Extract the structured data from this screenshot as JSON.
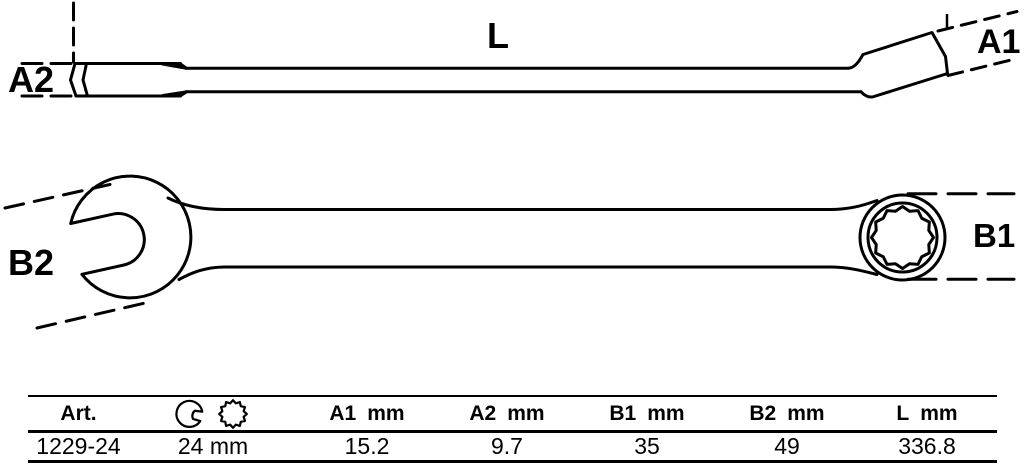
{
  "drawing": {
    "labels": {
      "length": "L",
      "a1": "A1",
      "a2": "A2",
      "b1": "B1",
      "b2": "B2"
    }
  },
  "table": {
    "columns": [
      {
        "label": "Art.",
        "unit": ""
      },
      {
        "label": "",
        "unit": "",
        "icons": [
          "open-end-wrench",
          "12-point-ring"
        ]
      },
      {
        "label": "A1",
        "unit": "mm"
      },
      {
        "label": "A2",
        "unit": "mm"
      },
      {
        "label": "B1",
        "unit": "mm"
      },
      {
        "label": "B2",
        "unit": "mm"
      },
      {
        "label": "L",
        "unit": "mm"
      }
    ],
    "row": [
      "1229-24",
      "24 mm",
      "15.2",
      "9.7",
      "35",
      "49",
      "336.8"
    ]
  },
  "colors": {
    "line": "#000000",
    "background": "#ffffff"
  }
}
